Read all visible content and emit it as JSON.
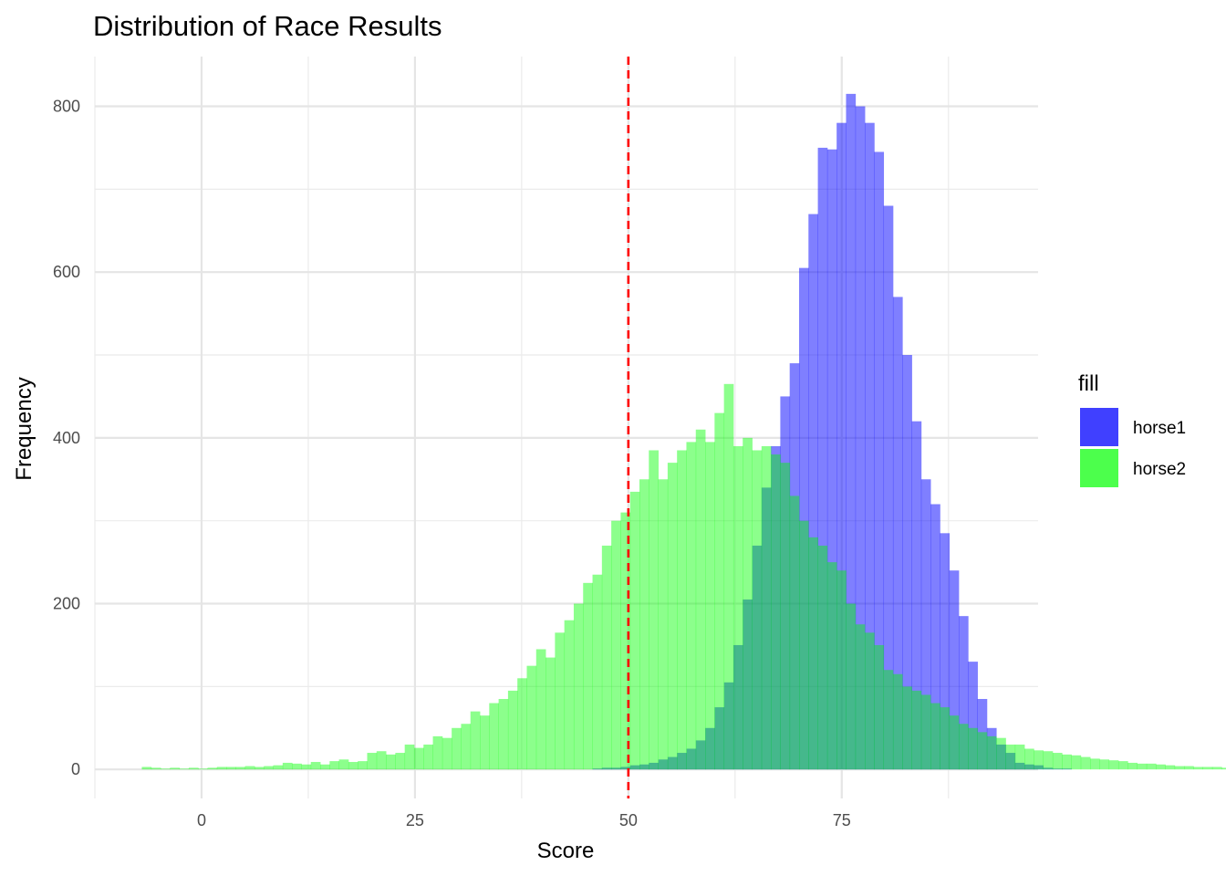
{
  "chart_data": {
    "type": "histogram",
    "title": "Distribution of Race Results",
    "xlabel": "Score",
    "ylabel": "Frequency",
    "xlim": [
      -12.5,
      98
    ],
    "ylim": [
      -35,
      860
    ],
    "x_ticks": [
      0,
      25,
      50,
      75
    ],
    "x_tick_labels": [
      "0",
      "25",
      "50",
      "75"
    ],
    "y_ticks": [
      0,
      200,
      400,
      600,
      800
    ],
    "y_tick_labels": [
      "0",
      "200",
      "400",
      "600",
      "800"
    ],
    "grid": true,
    "bin_width": 1.1,
    "bin_start": -7.0,
    "legend": {
      "title": "fill",
      "position": "right"
    },
    "reference_line": {
      "x": 50,
      "color": "#ff0000",
      "style": "dashed"
    },
    "series": [
      {
        "name": "horse1",
        "color": "#0000ff",
        "opacity": 0.5,
        "values": [
          0,
          0,
          0,
          0,
          0,
          0,
          0,
          0,
          0,
          0,
          0,
          0,
          0,
          0,
          0,
          0,
          0,
          0,
          0,
          0,
          0,
          0,
          0,
          0,
          0,
          0,
          0,
          0,
          0,
          0,
          0,
          0,
          0,
          0,
          0,
          0,
          0,
          0,
          0,
          0,
          0,
          0,
          0,
          0,
          0,
          0,
          0,
          0,
          1,
          2,
          2,
          3,
          5,
          6,
          8,
          12,
          15,
          20,
          25,
          35,
          50,
          75,
          105,
          150,
          205,
          270,
          340,
          390,
          450,
          490,
          605,
          670,
          750,
          748,
          780,
          815,
          800,
          780,
          745,
          680,
          570,
          500,
          420,
          350,
          320,
          285,
          240,
          185,
          130,
          85,
          50,
          30,
          20,
          8,
          6,
          5,
          2,
          1,
          1,
          0,
          0,
          0,
          0,
          0,
          0,
          0,
          0,
          0,
          0,
          0,
          0,
          0,
          0,
          0,
          0,
          0,
          0,
          0,
          0,
          0,
          0,
          0,
          0,
          0,
          0,
          0,
          0,
          0,
          0,
          0,
          0,
          0,
          0,
          0,
          0,
          0,
          0,
          0,
          0,
          0,
          0,
          0
        ]
      },
      {
        "name": "horse2",
        "color": "#00ff00",
        "opacity": 0.45,
        "values": [
          3,
          2,
          1,
          2,
          1,
          2,
          1,
          2,
          3,
          3,
          3,
          4,
          3,
          4,
          5,
          8,
          7,
          6,
          9,
          6,
          10,
          12,
          9,
          10,
          20,
          22,
          18,
          20,
          30,
          26,
          30,
          40,
          38,
          50,
          55,
          70,
          65,
          80,
          85,
          95,
          110,
          125,
          145,
          135,
          165,
          180,
          200,
          225,
          235,
          270,
          300,
          310,
          335,
          350,
          385,
          350,
          370,
          385,
          395,
          410,
          395,
          430,
          465,
          390,
          400,
          385,
          390,
          380,
          370,
          330,
          300,
          280,
          270,
          250,
          240,
          200,
          175,
          165,
          150,
          120,
          115,
          100,
          95,
          90,
          80,
          75,
          65,
          55,
          50,
          45,
          40,
          38,
          30,
          30,
          25,
          23,
          22,
          20,
          18,
          17,
          15,
          13,
          12,
          11,
          10,
          8,
          7,
          7,
          6,
          5,
          4,
          4,
          3,
          3,
          3,
          2,
          2,
          2,
          2,
          1,
          1,
          1,
          1,
          1,
          0,
          0,
          0,
          0,
          0,
          0,
          0,
          0,
          0,
          0,
          0,
          0,
          0,
          0,
          0,
          0,
          0,
          0,
          0,
          0,
          0
        ]
      }
    ]
  }
}
